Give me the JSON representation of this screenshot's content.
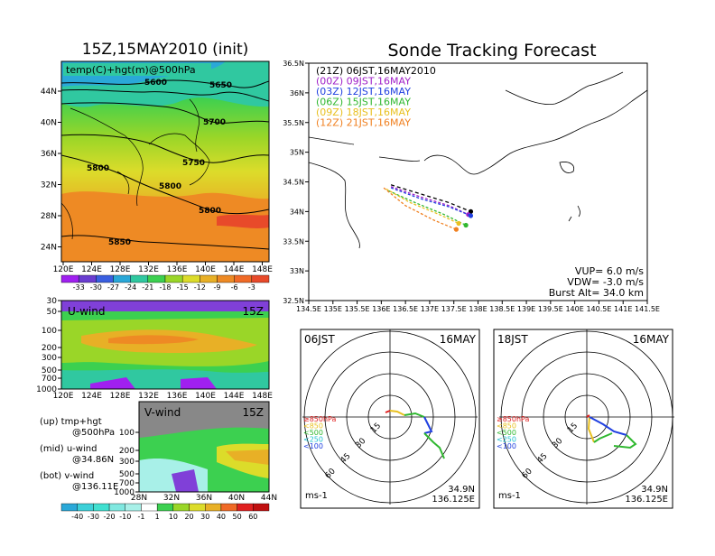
{
  "chart_data": [
    {
      "type": "heatmap",
      "title": "15Z,15MAY2010 (init)",
      "panel_label": "temp(C)+hgt(m)@500hPa",
      "x_ticks": [
        "120E",
        "124E",
        "128E",
        "132E",
        "136E",
        "140E",
        "144E",
        "148E"
      ],
      "y_ticks": [
        "44N",
        "40N",
        "36N",
        "32N",
        "28N",
        "24N"
      ],
      "contour_labels": [
        "5600",
        "5650",
        "5700",
        "5750",
        "5800",
        "5800",
        "5800",
        "5850"
      ],
      "colorbar_labels": [
        "-33",
        "-30",
        "-27",
        "-24",
        "-21",
        "-18",
        "-15",
        "-12",
        "-9",
        "-6",
        "-3"
      ],
      "colors": [
        "#a020f0",
        "#6a3dd0",
        "#3a5fe0",
        "#2aa8d8",
        "#30c8a0",
        "#3cd050",
        "#9ad628",
        "#dcdc2a",
        "#e8b026",
        "#ee8a24",
        "#f06a26",
        "#e84a2a"
      ]
    },
    {
      "type": "heatmap",
      "panel_label": "U-wind",
      "time_label": "15Z",
      "y_ticks": [
        "30",
        "50",
        "100",
        "200",
        "300",
        "500",
        "700",
        "1000"
      ],
      "x_ticks": [
        "120E",
        "124E",
        "128E",
        "132E",
        "136E",
        "140E",
        "144E",
        "148E"
      ]
    },
    {
      "type": "heatmap",
      "panel_label": "V-wind",
      "time_label": "15Z",
      "y_ticks": [
        "100",
        "200",
        "300",
        "500",
        "700",
        "1000"
      ],
      "x_ticks": [
        "28N",
        "32N",
        "36N",
        "40N",
        "44N"
      ],
      "colorbar_labels": [
        "-40",
        "-30",
        "-20",
        "-10",
        "-1",
        "1",
        "10",
        "20",
        "30",
        "40",
        "50",
        "60"
      ],
      "colors": [
        "#2aa8d8",
        "#3cd0d8",
        "#40e0d0",
        "#80e8e0",
        "#a8f0e8",
        "#ffffff",
        "#3cd050",
        "#9ad628",
        "#dcdc2a",
        "#e8b026",
        "#f06a26",
        "#e02020",
        "#c01010"
      ]
    },
    {
      "type": "line",
      "title": "Sonde Tracking Forecast",
      "x_ticks": [
        "134.5E",
        "135E",
        "135.5E",
        "136E",
        "136.5E",
        "137E",
        "137.5E",
        "138E",
        "138.5E",
        "139E",
        "139.5E",
        "140E",
        "140.5E",
        "141E",
        "141.5E"
      ],
      "y_ticks": [
        "36.5N",
        "36N",
        "35.5N",
        "35N",
        "34.5N",
        "34N",
        "33.5N",
        "33N",
        "32.5N"
      ],
      "xlim": [
        134.5,
        141.5
      ],
      "ylim": [
        32.5,
        36.5
      ],
      "legend": [
        {
          "label": "(21Z)  06JST,16MAY2010",
          "color": "#000000"
        },
        {
          "label": "(00Z)  09JST,16MAY",
          "color": "#a020c8"
        },
        {
          "label": "(03Z)  12JST,16MAY",
          "color": "#2040e0"
        },
        {
          "label": "(06Z)  15JST,16MAY",
          "color": "#30b830"
        },
        {
          "label": "(09Z)  18JST,16MAY",
          "color": "#e8c020"
        },
        {
          "label": "(12Z)  21JST,16MAY",
          "color": "#f08020"
        }
      ],
      "series": [
        {
          "color": "#000000",
          "x": [
            136.2,
            136.8,
            137.4,
            137.85
          ],
          "y": [
            34.45,
            34.3,
            34.15,
            34.0
          ]
        },
        {
          "color": "#a020c8",
          "x": [
            136.2,
            136.8,
            137.4,
            137.8
          ],
          "y": [
            34.42,
            34.25,
            34.1,
            33.95
          ]
        },
        {
          "color": "#2040e0",
          "x": [
            136.2,
            136.8,
            137.4,
            137.85
          ],
          "y": [
            34.4,
            34.22,
            34.08,
            33.93
          ]
        },
        {
          "color": "#30b830",
          "x": [
            136.15,
            136.7,
            137.3,
            137.75
          ],
          "y": [
            34.35,
            34.15,
            33.95,
            33.77
          ]
        },
        {
          "color": "#e8c020",
          "x": [
            136.1,
            136.6,
            137.2,
            137.6
          ],
          "y": [
            34.38,
            34.15,
            33.95,
            33.8
          ]
        },
        {
          "color": "#f08020",
          "x": [
            136.05,
            136.5,
            137.1,
            137.55
          ],
          "y": [
            34.4,
            34.1,
            33.85,
            33.7
          ]
        }
      ],
      "info": [
        "VUP=  6.0  m/s",
        "VDW= -3.0  m/s",
        "Burst Alt=  34.0  km"
      ]
    },
    {
      "type": "line",
      "title_left": "06JST",
      "title_right": "16MAY",
      "ring_labels": [
        "15",
        "30",
        "45",
        "60"
      ],
      "pressure_legend": [
        {
          "label": "≥850hPa",
          "color": "#e02020"
        },
        {
          "label": "<850",
          "color": "#e8c020"
        },
        {
          "label": "<500",
          "color": "#30b830"
        },
        {
          "label": "<250",
          "color": "#20c0d0"
        },
        {
          "label": "<100",
          "color": "#2040e0"
        }
      ],
      "units": "ms-1",
      "location": [
        "34.9N",
        "136.125E"
      ]
    },
    {
      "type": "line",
      "title_left": "18JST",
      "title_right": "16MAY",
      "ring_labels": [
        "15",
        "30",
        "45",
        "60"
      ],
      "pressure_legend": [
        {
          "label": "≥850hPa",
          "color": "#e02020"
        },
        {
          "label": "<850",
          "color": "#e8c020"
        },
        {
          "label": "<500",
          "color": "#30b830"
        },
        {
          "label": "<250",
          "color": "#20c0d0"
        },
        {
          "label": "<100",
          "color": "#2040e0"
        }
      ],
      "units": "ms-1",
      "location": [
        "34.9N",
        "136.125E"
      ]
    }
  ],
  "side_notes": {
    "up": [
      "(up) tmp+hgt",
      "@500hPa"
    ],
    "mid": [
      "(mid) u-wind",
      "@34.86N"
    ],
    "bot": [
      "(bot) v-wind",
      "@136.11E"
    ]
  }
}
